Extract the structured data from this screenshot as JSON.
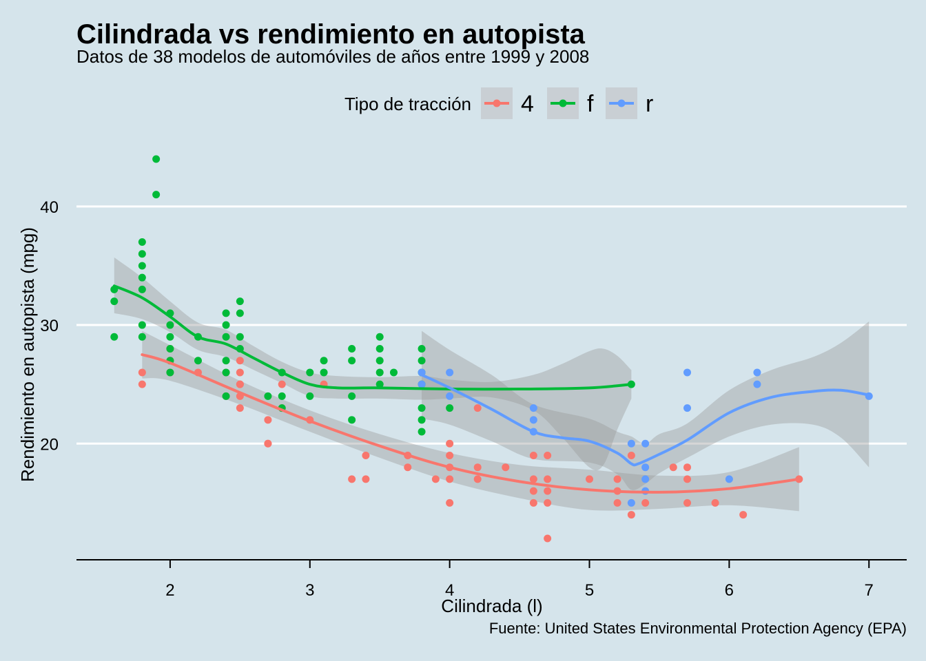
{
  "chart_data": {
    "type": "scatter",
    "title": "Cilindrada vs rendimiento en autopista",
    "subtitle": "Datos de 38 modelos de automóviles de años entre 1999 y 2008",
    "caption": "Fuente: United States Environmental Protection Agency (EPA)",
    "xlabel": "Cilindrada (l)",
    "ylabel": "Rendimiento en autopista (mpg)",
    "xlim": [
      1.33,
      7.27
    ],
    "ylim": [
      10.2,
      45.8
    ],
    "xticks": [
      2,
      3,
      4,
      5,
      6,
      7
    ],
    "yticks": [
      20,
      30,
      40
    ],
    "grid": "horizontal major lines",
    "legend": {
      "title": "Tipo de tracción",
      "position": "top",
      "entries": [
        "4",
        "f",
        "r"
      ]
    },
    "colors": {
      "4": "#f8766d",
      "f": "#00ba38",
      "r": "#619cff",
      "band": "#999999",
      "background": "#d5e4eb",
      "grid": "#ffffff"
    },
    "series": [
      {
        "name": "4",
        "points": [
          [
            1.8,
            26
          ],
          [
            1.8,
            25
          ],
          [
            2.0,
            28
          ],
          [
            2.0,
            27
          ],
          [
            2.0,
            26
          ],
          [
            2.2,
            26
          ],
          [
            2.4,
            26
          ],
          [
            2.4,
            24
          ],
          [
            2.5,
            27
          ],
          [
            2.5,
            26
          ],
          [
            2.5,
            25
          ],
          [
            2.5,
            24
          ],
          [
            2.5,
            23
          ],
          [
            2.5,
            25
          ],
          [
            2.7,
            22
          ],
          [
            2.7,
            20
          ],
          [
            2.7,
            20
          ],
          [
            2.8,
            25
          ],
          [
            2.8,
            23
          ],
          [
            3.0,
            22
          ],
          [
            3.1,
            25
          ],
          [
            3.3,
            17
          ],
          [
            3.4,
            19
          ],
          [
            3.4,
            17
          ],
          [
            3.7,
            19
          ],
          [
            3.7,
            18
          ],
          [
            3.9,
            17
          ],
          [
            4.0,
            20
          ],
          [
            4.0,
            19
          ],
          [
            4.0,
            18
          ],
          [
            4.0,
            17
          ],
          [
            4.0,
            15
          ],
          [
            4.2,
            23
          ],
          [
            4.2,
            18
          ],
          [
            4.2,
            17
          ],
          [
            4.4,
            18
          ],
          [
            4.6,
            19
          ],
          [
            4.6,
            17
          ],
          [
            4.6,
            16
          ],
          [
            4.6,
            15
          ],
          [
            4.7,
            19
          ],
          [
            4.7,
            17
          ],
          [
            4.7,
            16
          ],
          [
            4.7,
            15
          ],
          [
            4.7,
            12
          ],
          [
            5.0,
            17
          ],
          [
            5.2,
            17
          ],
          [
            5.2,
            16
          ],
          [
            5.2,
            15
          ],
          [
            5.3,
            19
          ],
          [
            5.3,
            14
          ],
          [
            5.4,
            15
          ],
          [
            5.6,
            18
          ],
          [
            5.7,
            18
          ],
          [
            5.7,
            17
          ],
          [
            5.7,
            15
          ],
          [
            5.9,
            15
          ],
          [
            6.1,
            14
          ],
          [
            6.5,
            17
          ]
        ],
        "smooth": [
          [
            1.8,
            27.5
          ],
          [
            2.0,
            26.8
          ],
          [
            2.5,
            24.3
          ],
          [
            3.0,
            21.9
          ],
          [
            3.5,
            19.8
          ],
          [
            4.0,
            18.0
          ],
          [
            4.5,
            16.8
          ],
          [
            5.0,
            16.1
          ],
          [
            5.5,
            15.9
          ],
          [
            6.0,
            16.2
          ],
          [
            6.5,
            17.0
          ]
        ],
        "band_upper": [
          [
            1.8,
            29.5
          ],
          [
            2.0,
            28.3
          ],
          [
            2.5,
            25.3
          ],
          [
            3.0,
            22.8
          ],
          [
            3.5,
            20.8
          ],
          [
            4.0,
            19.2
          ],
          [
            4.5,
            18.2
          ],
          [
            5.0,
            17.8
          ],
          [
            5.5,
            17.3
          ],
          [
            6.0,
            17.6
          ],
          [
            6.5,
            19.7
          ]
        ],
        "band_lower": [
          [
            1.8,
            25.5
          ],
          [
            2.0,
            25.3
          ],
          [
            2.5,
            23.3
          ],
          [
            3.0,
            21.0
          ],
          [
            3.5,
            18.8
          ],
          [
            4.0,
            16.8
          ],
          [
            4.5,
            15.4
          ],
          [
            5.0,
            14.4
          ],
          [
            5.5,
            14.5
          ],
          [
            6.0,
            14.8
          ],
          [
            6.5,
            14.3
          ]
        ]
      },
      {
        "name": "f",
        "points": [
          [
            1.6,
            33
          ],
          [
            1.6,
            32
          ],
          [
            1.6,
            29
          ],
          [
            1.8,
            37
          ],
          [
            1.8,
            36
          ],
          [
            1.8,
            35
          ],
          [
            1.8,
            34
          ],
          [
            1.8,
            33
          ],
          [
            1.8,
            30
          ],
          [
            1.8,
            29
          ],
          [
            1.9,
            44
          ],
          [
            1.9,
            41
          ],
          [
            2.0,
            31
          ],
          [
            2.0,
            30
          ],
          [
            2.0,
            29
          ],
          [
            2.0,
            28
          ],
          [
            2.0,
            27
          ],
          [
            2.0,
            26
          ],
          [
            2.2,
            29
          ],
          [
            2.2,
            27
          ],
          [
            2.4,
            31
          ],
          [
            2.4,
            30
          ],
          [
            2.4,
            29
          ],
          [
            2.4,
            27
          ],
          [
            2.4,
            26
          ],
          [
            2.4,
            24
          ],
          [
            2.5,
            32
          ],
          [
            2.5,
            31
          ],
          [
            2.5,
            29
          ],
          [
            2.5,
            28
          ],
          [
            2.7,
            24
          ],
          [
            2.8,
            26
          ],
          [
            2.8,
            24
          ],
          [
            2.8,
            23
          ],
          [
            3.0,
            26
          ],
          [
            3.0,
            24
          ],
          [
            3.1,
            27
          ],
          [
            3.1,
            26
          ],
          [
            3.3,
            28
          ],
          [
            3.3,
            27
          ],
          [
            3.3,
            24
          ],
          [
            3.3,
            22
          ],
          [
            3.5,
            29
          ],
          [
            3.5,
            28
          ],
          [
            3.5,
            27
          ],
          [
            3.5,
            26
          ],
          [
            3.5,
            25
          ],
          [
            3.6,
            26
          ],
          [
            3.8,
            28
          ],
          [
            3.8,
            27
          ],
          [
            3.8,
            26
          ],
          [
            3.8,
            25
          ],
          [
            3.8,
            23
          ],
          [
            3.8,
            22
          ],
          [
            3.8,
            21
          ],
          [
            4.0,
            23
          ],
          [
            5.3,
            25
          ]
        ],
        "smooth": [
          [
            1.6,
            33.3
          ],
          [
            1.8,
            32.3
          ],
          [
            2.0,
            30.7
          ],
          [
            2.2,
            29.0
          ],
          [
            2.4,
            28.4
          ],
          [
            2.6,
            27.2
          ],
          [
            2.8,
            26.0
          ],
          [
            3.0,
            25.0
          ],
          [
            3.2,
            24.7
          ],
          [
            3.5,
            24.7
          ],
          [
            4.0,
            24.6
          ],
          [
            4.5,
            24.6
          ],
          [
            5.0,
            24.7
          ],
          [
            5.3,
            25.0
          ]
        ],
        "band_upper": [
          [
            1.6,
            35.7
          ],
          [
            1.8,
            34.0
          ],
          [
            2.0,
            32.0
          ],
          [
            2.2,
            30.2
          ],
          [
            2.4,
            29.6
          ],
          [
            2.6,
            28.2
          ],
          [
            2.8,
            26.9
          ],
          [
            3.0,
            26.0
          ],
          [
            3.2,
            25.7
          ],
          [
            3.5,
            25.6
          ],
          [
            3.8,
            25.7
          ],
          [
            4.0,
            25.4
          ],
          [
            4.3,
            25.2
          ],
          [
            4.6,
            25.8
          ],
          [
            4.8,
            26.7
          ],
          [
            5.0,
            27.8
          ],
          [
            5.1,
            28.0
          ],
          [
            5.2,
            27.4
          ],
          [
            5.3,
            26.2
          ]
        ],
        "band_lower": [
          [
            1.6,
            31.0
          ],
          [
            1.8,
            30.5
          ],
          [
            2.0,
            29.4
          ],
          [
            2.2,
            27.9
          ],
          [
            2.4,
            27.3
          ],
          [
            2.6,
            26.2
          ],
          [
            2.8,
            25.1
          ],
          [
            3.0,
            24.0
          ],
          [
            3.2,
            23.8
          ],
          [
            3.5,
            23.8
          ],
          [
            3.8,
            23.7
          ],
          [
            4.0,
            23.8
          ],
          [
            4.3,
            23.9
          ],
          [
            4.6,
            22.8
          ],
          [
            4.8,
            20.6
          ],
          [
            5.0,
            18.0
          ],
          [
            5.1,
            18.2
          ],
          [
            5.2,
            21.2
          ],
          [
            5.3,
            23.8
          ]
        ]
      },
      {
        "name": "r",
        "points": [
          [
            3.8,
            26
          ],
          [
            3.8,
            25
          ],
          [
            4.0,
            26
          ],
          [
            4.0,
            24
          ],
          [
            4.6,
            23
          ],
          [
            4.6,
            22
          ],
          [
            4.6,
            21
          ],
          [
            5.3,
            20
          ],
          [
            5.3,
            15
          ],
          [
            5.4,
            20
          ],
          [
            5.4,
            18
          ],
          [
            5.4,
            17
          ],
          [
            5.4,
            16
          ],
          [
            5.7,
            26
          ],
          [
            5.7,
            23
          ],
          [
            6.0,
            17
          ],
          [
            6.2,
            26
          ],
          [
            6.2,
            25
          ],
          [
            7.0,
            24
          ]
        ],
        "smooth": [
          [
            3.8,
            25.8
          ],
          [
            4.0,
            24.7
          ],
          [
            4.3,
            22.9
          ],
          [
            4.6,
            21.0
          ],
          [
            4.8,
            20.5
          ],
          [
            5.0,
            20.2
          ],
          [
            5.2,
            19.2
          ],
          [
            5.3,
            18.3
          ],
          [
            5.35,
            18.3
          ],
          [
            5.5,
            19.1
          ],
          [
            5.7,
            20.3
          ],
          [
            6.0,
            22.6
          ],
          [
            6.3,
            23.9
          ],
          [
            6.6,
            24.4
          ],
          [
            6.8,
            24.5
          ],
          [
            7.0,
            24.1
          ]
        ],
        "band_upper": [
          [
            3.8,
            29.5
          ],
          [
            4.0,
            27.9
          ],
          [
            4.3,
            25.8
          ],
          [
            4.6,
            23.3
          ],
          [
            5.0,
            22.1
          ],
          [
            5.2,
            21.0
          ],
          [
            5.3,
            20.6
          ],
          [
            5.4,
            20.0
          ],
          [
            5.5,
            20.8
          ],
          [
            5.7,
            21.7
          ],
          [
            6.0,
            24.5
          ],
          [
            6.3,
            26.2
          ],
          [
            6.6,
            27.3
          ],
          [
            6.8,
            28.5
          ],
          [
            7.0,
            30.3
          ]
        ],
        "band_lower": [
          [
            3.8,
            22.1
          ],
          [
            4.0,
            21.6
          ],
          [
            4.3,
            20.2
          ],
          [
            4.6,
            18.7
          ],
          [
            5.0,
            18.4
          ],
          [
            5.2,
            17.4
          ],
          [
            5.3,
            16.1
          ],
          [
            5.4,
            16.6
          ],
          [
            5.5,
            17.5
          ],
          [
            5.7,
            18.8
          ],
          [
            6.0,
            20.6
          ],
          [
            6.3,
            21.6
          ],
          [
            6.6,
            21.6
          ],
          [
            6.8,
            20.5
          ],
          [
            7.0,
            18.0
          ]
        ]
      }
    ]
  }
}
